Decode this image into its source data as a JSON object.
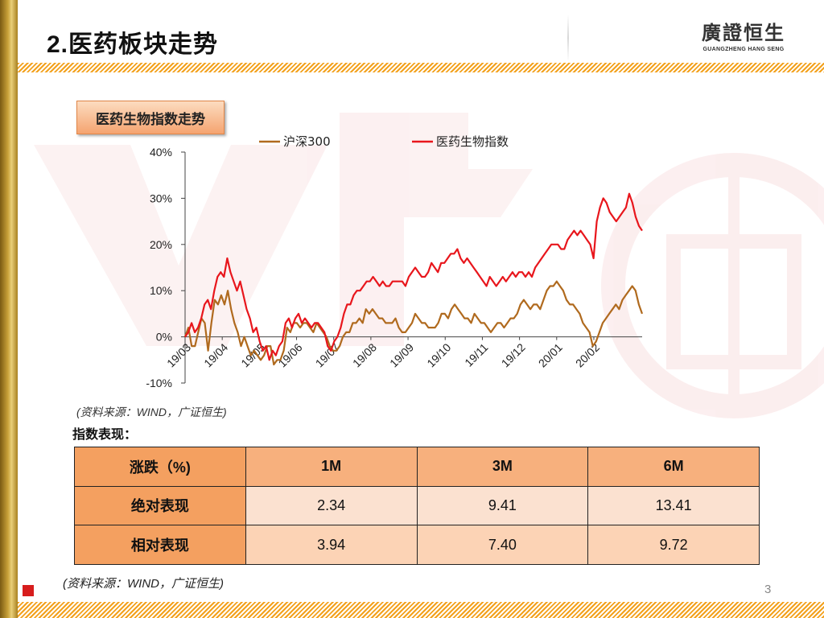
{
  "header": {
    "title": "2.医药板块走势",
    "logo_cn": "廣證恒生",
    "logo_en": "GUANGZHENG HANG SENG"
  },
  "chart_section": {
    "tag": "医药生物指数走势"
  },
  "chart_data": {
    "type": "line",
    "title": "",
    "xlabel": "",
    "ylabel": "",
    "ylim": [
      -10,
      40
    ],
    "yticks": [
      "-10%",
      "0%",
      "10%",
      "20%",
      "30%",
      "40%"
    ],
    "x_tick_labels": [
      "19/03",
      "19/04",
      "19/05",
      "19/06",
      "19/07",
      "19/08",
      "19/09",
      "19/10",
      "19/11",
      "19/12",
      "20/01",
      "20/02"
    ],
    "legend_position": "top",
    "series": [
      {
        "name": "沪深300",
        "color": "#b06a1e",
        "values": [
          0,
          2,
          -2,
          -2,
          1,
          4,
          3,
          -3,
          3,
          8,
          7,
          9,
          7,
          10,
          6,
          3,
          1,
          -2,
          0,
          -2,
          -4,
          -3,
          -4,
          -5,
          -4,
          -2,
          -2,
          -6,
          -5,
          -5,
          -3,
          2,
          1,
          3,
          3,
          2,
          3,
          3,
          2,
          1,
          3,
          2,
          1,
          0,
          -2,
          -3,
          -3,
          -2,
          0,
          1,
          1,
          3,
          3,
          4,
          3,
          6,
          5,
          6,
          5,
          4,
          4,
          3,
          3,
          3,
          4,
          2,
          1,
          1,
          2,
          3,
          5,
          4,
          3,
          3,
          2,
          2,
          2,
          3,
          5,
          5,
          4,
          6,
          7,
          6,
          5,
          4,
          4,
          3,
          5,
          4,
          3,
          3,
          2,
          1,
          2,
          3,
          3,
          2,
          3,
          4,
          4,
          5,
          7,
          8,
          7,
          6,
          7,
          7,
          6,
          8,
          10,
          11,
          11,
          12,
          11,
          10,
          8,
          7,
          7,
          6,
          5,
          3,
          2,
          1,
          -2,
          -1,
          1,
          3,
          4,
          5,
          6,
          7,
          6,
          8,
          9,
          10,
          11,
          10,
          7,
          5
        ]
      },
      {
        "name": "医药生物指数",
        "color": "#e8161c",
        "values": [
          0,
          1,
          3,
          1,
          2,
          4,
          7,
          8,
          6,
          10,
          13,
          14,
          13,
          17,
          14,
          12,
          10,
          12,
          9,
          6,
          4,
          1,
          2,
          -1,
          -3,
          -2,
          -5,
          -3,
          -4,
          -2,
          -1,
          3,
          4,
          2,
          4,
          5,
          3,
          4,
          3,
          2,
          3,
          3,
          2,
          1,
          -2,
          -3,
          -1,
          0,
          2,
          5,
          7,
          7,
          9,
          10,
          10,
          11,
          12,
          12,
          13,
          12,
          11,
          12,
          11,
          11,
          12,
          12,
          12,
          12,
          11,
          13,
          14,
          15,
          14,
          13,
          13,
          14,
          16,
          15,
          14,
          16,
          16,
          17,
          18,
          18,
          19,
          17,
          16,
          17,
          16,
          15,
          14,
          13,
          12,
          11,
          13,
          12,
          11,
          12,
          13,
          12,
          13,
          14,
          13,
          14,
          14,
          13,
          14,
          13,
          15,
          16,
          17,
          18,
          19,
          20,
          20,
          20,
          19,
          19,
          21,
          22,
          23,
          22,
          23,
          22,
          21,
          20,
          17,
          25,
          28,
          30,
          29,
          27,
          26,
          25,
          26,
          27,
          28,
          31,
          29,
          26,
          24,
          23
        ]
      }
    ]
  },
  "source_note_1": "(资料来源：WIND，广证恒生)",
  "perf_heading": "指数表现：",
  "perf_table": {
    "corner": "涨跌（%)",
    "columns": [
      "1M",
      "3M",
      "6M"
    ],
    "rows": [
      {
        "label": "绝对表现",
        "values": [
          "2.34",
          "9.41",
          "13.41"
        ]
      },
      {
        "label": "相对表现",
        "values": [
          "3.94",
          "7.40",
          "9.72"
        ]
      }
    ]
  },
  "source_note_2": "(资料来源：WIND，广证恒生)",
  "page_number": "3",
  "colors": {
    "accent_orange": "#f3a11c",
    "table_header": "#f7b07d",
    "table_rowhead": "#f4a060",
    "brand_red": "#d71d1d"
  }
}
